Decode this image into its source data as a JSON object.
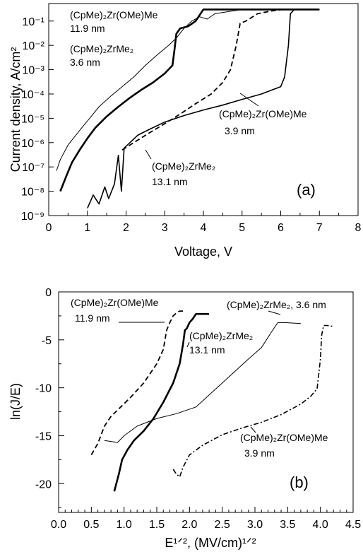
{
  "chart_data": [
    {
      "type": "line",
      "panel_label": "(a)",
      "xlabel": "Voltage, V",
      "ylabel": "Current density, A/cm²",
      "xlim": [
        0,
        8
      ],
      "ylim": [
        1e-09,
        0.3
      ],
      "y_scale": "log",
      "x_ticks": [
        "0",
        "1",
        "2",
        "3",
        "4",
        "5",
        "6",
        "7",
        "8"
      ],
      "y_ticks": [
        "10⁻⁹",
        "10⁻⁸",
        "10⁻⁷",
        "10⁻⁶",
        "10⁻⁵",
        "10⁻⁴",
        "10⁻³",
        "10⁻²",
        "10⁻¹"
      ],
      "grid": false,
      "series": [
        {
          "style": "thick-solid",
          "x": [
            0.3,
            0.45,
            0.6,
            0.8,
            1.0,
            1.2,
            1.5,
            1.8,
            2.1,
            2.4,
            2.7,
            3.0,
            3.2,
            3.25,
            3.3,
            3.4,
            3.6,
            3.8,
            4.0,
            4.3,
            4.6,
            5.2,
            6.0,
            7.0
          ],
          "y": [
            1e-08,
            4e-08,
            1.5e-07,
            5e-07,
            1.5e-06,
            4e-06,
            1.2e-05,
            3e-05,
            7e-05,
            0.00015,
            0.0003,
            0.0007,
            0.0015,
            0.006,
            0.03,
            0.05,
            0.06,
            0.1,
            0.3,
            0.3,
            0.3,
            0.3,
            0.3,
            0.3
          ],
          "annotation": [
            "(CpMe)₂Zr(OMe)Me",
            "11.9 nm"
          ]
        },
        {
          "style": "thin-solid",
          "x": [
            0.2,
            0.3,
            0.5,
            0.7,
            0.9,
            1.1,
            1.3,
            1.6,
            1.9,
            2.2,
            2.5,
            2.8,
            3.1,
            3.3,
            3.5,
            3.7,
            3.9,
            4.1,
            4.3,
            5.0,
            6.0,
            7.0
          ],
          "y": [
            7e-08,
            2e-07,
            8e-07,
            2e-06,
            5e-06,
            1.2e-05,
            3e-05,
            8e-05,
            0.0002,
            0.0005,
            0.0015,
            0.004,
            0.01,
            0.02,
            0.05,
            0.1,
            0.15,
            0.12,
            0.2,
            0.3,
            0.3,
            0.3
          ],
          "annotation": [
            "(CpMe)₂ZrMe₂",
            "3.6 nm"
          ]
        },
        {
          "style": "dashed",
          "x": [
            1.9,
            2.2,
            2.6,
            3.0,
            3.4,
            3.8,
            4.2,
            4.5,
            4.7,
            4.85,
            4.95,
            5.1,
            5.4,
            5.7,
            5.9,
            6.05,
            6.15,
            7.0
          ],
          "y": [
            5e-07,
            1e-06,
            2.5e-06,
            6e-06,
            1.5e-05,
            4e-05,
            0.0001,
            0.0003,
            0.001,
            0.01,
            0.08,
            0.1,
            0.2,
            0.25,
            0.28,
            0.3,
            0.3,
            0.3
          ],
          "annotation": [
            "(CpMe)₂ZrMe₂",
            "13.1 nm"
          ]
        },
        {
          "style": "solid",
          "x": [
            1.0,
            1.15,
            1.3,
            1.45,
            1.55,
            1.7,
            1.8,
            1.88,
            1.95,
            2.1,
            2.3,
            2.6,
            3.0,
            3.5,
            4.0,
            4.5,
            5.0,
            5.5,
            6.0,
            6.1,
            6.2,
            6.25,
            6.35,
            7.0
          ],
          "y": [
            2e-09,
            7e-09,
            3e-09,
            1.5e-08,
            5e-09,
            2e-08,
            3e-07,
            1e-08,
            6e-07,
            1e-06,
            2e-06,
            3.5e-06,
            7e-06,
            1.3e-05,
            2.2e-05,
            3.5e-05,
            6e-05,
            0.0001,
            0.0002,
            0.0005,
            0.01,
            0.2,
            0.3,
            0.3
          ],
          "annotation": [
            "(CpMe)₂Zr(OMe)Me",
            "3.9 nm"
          ]
        }
      ]
    },
    {
      "type": "line",
      "panel_label": "(b)",
      "xlabel": "E¹ᐟ², (MV/cm)¹ᐟ²",
      "ylabel": "ln(J/E)",
      "xlim": [
        0,
        4.5
      ],
      "ylim": [
        -23,
        0
      ],
      "x_ticks": [
        "0.0",
        "0.5",
        "1.0",
        "1.5",
        "2.0",
        "2.5",
        "3.0",
        "3.5",
        "4.0",
        "4.5"
      ],
      "y_ticks": [
        "0",
        "-5",
        "-10",
        "-15",
        "-20"
      ],
      "grid": false,
      "series": [
        {
          "style": "thick-solid",
          "x": [
            0.85,
            0.92,
            0.97,
            1.05,
            1.15,
            1.3,
            1.45,
            1.6,
            1.75,
            1.85,
            1.9,
            1.93,
            1.96,
            2.0,
            2.05,
            2.1,
            2.3
          ],
          "y": [
            -20.8,
            -19,
            -17.5,
            -16.5,
            -15.5,
            -14.5,
            -13.2,
            -11.5,
            -9.5,
            -7.5,
            -5.5,
            -4,
            -3.8,
            -3.2,
            -2.8,
            -2.3,
            -2.3
          ],
          "annotation": [
            "(CpMe)₂ZrMe₂",
            "13.1 nm"
          ]
        },
        {
          "style": "dashed",
          "x": [
            0.5,
            0.6,
            0.7,
            0.8,
            0.95,
            1.1,
            1.3,
            1.5,
            1.6,
            1.65,
            1.7,
            1.75,
            1.8,
            1.85,
            1.9
          ],
          "y": [
            -17,
            -15.8,
            -14,
            -13,
            -12,
            -11,
            -9.5,
            -7.5,
            -6,
            -4,
            -3.2,
            -2.5,
            -2.2,
            -2,
            -2
          ],
          "annotation": [
            "(CpMe)₂Zr(OMe)Me",
            "11.9 nm"
          ]
        },
        {
          "style": "thin-solid",
          "x": [
            0.7,
            0.8,
            0.9,
            1.0,
            1.2,
            1.5,
            1.8,
            2.1,
            2.5,
            2.9,
            3.1,
            3.25,
            3.35,
            3.45,
            3.7
          ],
          "y": [
            -15.5,
            -15.6,
            -15.7,
            -15,
            -14,
            -13.2,
            -12.7,
            -12,
            -9.5,
            -7,
            -5.8,
            -4.2,
            -3.2,
            -3.2,
            -3.3
          ],
          "annotation": [
            "(CpMe)₂ZrMe₂, 3.6 nm"
          ]
        },
        {
          "style": "dash-dot",
          "x": [
            1.75,
            1.8,
            1.85,
            1.9,
            2.0,
            2.2,
            2.5,
            2.8,
            3.1,
            3.4,
            3.7,
            3.85,
            3.95,
            4.0,
            4.02,
            4.05,
            4.1,
            4.2
          ],
          "y": [
            -18.5,
            -19,
            -19.3,
            -18.3,
            -17,
            -16,
            -14.9,
            -14.2,
            -13.6,
            -12.8,
            -11.7,
            -10.9,
            -10.1,
            -7,
            -4.5,
            -3.5,
            -3.5,
            -3.6
          ],
          "annotation": [
            "(CpMe)₂Zr(OMe)Me",
            "3.9 nm"
          ]
        }
      ]
    }
  ]
}
